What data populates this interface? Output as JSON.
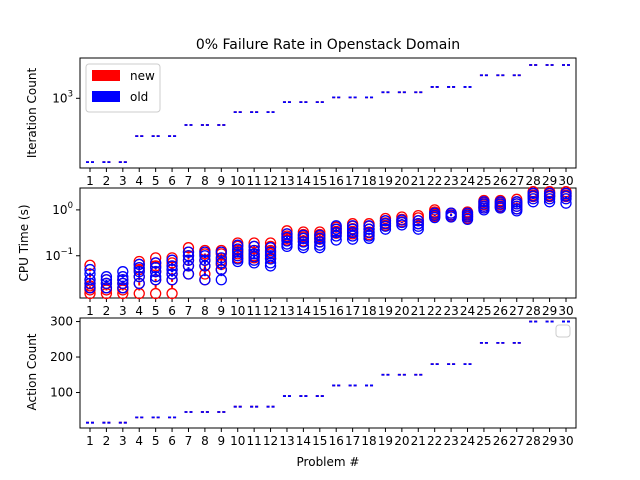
{
  "figure": {
    "title": "0% Failure Rate in Openstack Domain",
    "xlabel": "Problem #"
  },
  "legend": {
    "entries": [
      {
        "label": "new",
        "color": "#ff0000"
      },
      {
        "label": "old",
        "color": "#0000ff"
      }
    ],
    "placement_top": "upper-left",
    "placement_bottom": "upper-right (empty)"
  },
  "chart_data": [
    {
      "type": "box",
      "title": "0% Failure Rate in Openstack Domain",
      "ylabel": "Iteration Count",
      "yscale": "log",
      "ylim": [
        220,
        2400
      ],
      "yticks": [
        {
          "value": 1000,
          "label": "10^3"
        }
      ],
      "categories": [
        "1",
        "2",
        "3",
        "4",
        "5",
        "6",
        "7",
        "8",
        "9",
        "10",
        "11",
        "12",
        "13",
        "14",
        "15",
        "16",
        "17",
        "18",
        "19",
        "20",
        "21",
        "22",
        "23",
        "24",
        "25",
        "26",
        "27",
        "28",
        "29",
        "30"
      ],
      "series": [
        {
          "name": "new",
          "color": "#ff0000",
          "values": [
            250,
            250,
            250,
            440,
            440,
            440,
            560,
            560,
            560,
            740,
            740,
            740,
            920,
            920,
            920,
            1020,
            1020,
            1020,
            1140,
            1140,
            1140,
            1280,
            1280,
            1280,
            1650,
            1650,
            1650,
            2060,
            2060,
            2060
          ]
        },
        {
          "name": "old",
          "color": "#0000ff",
          "values": [
            250,
            250,
            250,
            440,
            440,
            440,
            560,
            560,
            560,
            740,
            740,
            740,
            920,
            920,
            920,
            1020,
            1020,
            1020,
            1140,
            1140,
            1140,
            1280,
            1280,
            1280,
            1650,
            1650,
            1650,
            2060,
            2060,
            2060
          ]
        }
      ]
    },
    {
      "type": "box",
      "ylabel": "CPU Time (s)",
      "yscale": "log",
      "ylim": [
        0.012,
        3.0
      ],
      "yticks": [
        {
          "value": 0.1,
          "label": "10^-1"
        },
        {
          "value": 1,
          "label": "10^0"
        }
      ],
      "categories": [
        "1",
        "2",
        "3",
        "4",
        "5",
        "6",
        "7",
        "8",
        "9",
        "10",
        "11",
        "12",
        "13",
        "14",
        "15",
        "16",
        "17",
        "18",
        "19",
        "20",
        "21",
        "22",
        "23",
        "24",
        "25",
        "26",
        "27",
        "28",
        "29",
        "30"
      ],
      "series": [
        {
          "name": "new",
          "color": "#ff0000",
          "values": [
            [
              0.062,
              0.03,
              0.025,
              0.022,
              0.02,
              0.018,
              0.015
            ],
            [
              0.03,
              0.025,
              0.02,
              0.018,
              0.015
            ],
            [
              0.03,
              0.025,
              0.02,
              0.018,
              0.015
            ],
            [
              0.075,
              0.065,
              0.05,
              0.035,
              0.025,
              0.015
            ],
            [
              0.09,
              0.07,
              0.06,
              0.045,
              0.03,
              0.015
            ],
            [
              0.09,
              0.07,
              0.05,
              0.04,
              0.03,
              0.015
            ],
            [
              0.15,
              0.12,
              0.1,
              0.08,
              0.06,
              0.04
            ],
            [
              0.13,
              0.11,
              0.08,
              0.06,
              0.04,
              0.03
            ],
            [
              0.13,
              0.11,
              0.08,
              0.065,
              0.05
            ],
            [
              0.19,
              0.16,
              0.13,
              0.11,
              0.09
            ],
            [
              0.19,
              0.16,
              0.13,
              0.11,
              0.1,
              0.09
            ],
            [
              0.19,
              0.16,
              0.13,
              0.11,
              0.09
            ],
            [
              0.35,
              0.3,
              0.27,
              0.24,
              0.22
            ],
            [
              0.33,
              0.29,
              0.26,
              0.24,
              0.21
            ],
            [
              0.33,
              0.29,
              0.26,
              0.23,
              0.2
            ],
            [
              0.42,
              0.38,
              0.34,
              0.31
            ],
            [
              0.5,
              0.44,
              0.39,
              0.34,
              0.3
            ],
            [
              0.5,
              0.44,
              0.38,
              0.33,
              0.29
            ],
            [
              0.65,
              0.58,
              0.52,
              0.46
            ],
            [
              0.7,
              0.62,
              0.55
            ],
            [
              0.75,
              0.67,
              0.58,
              0.5
            ],
            [
              1.0,
              0.9,
              0.8,
              0.72
            ],
            [
              0.85,
              0.78,
              0.72
            ],
            [
              0.9,
              0.8,
              0.72,
              0.65
            ],
            [
              1.6,
              1.45,
              1.3,
              1.2,
              1.1
            ],
            [
              1.6,
              1.45,
              1.3,
              1.2,
              1.15
            ],
            [
              1.7,
              1.5,
              1.35,
              1.2,
              1.05
            ],
            [
              2.5,
              2.3,
              2.1,
              1.95
            ],
            [
              2.5,
              2.3,
              2.1,
              1.95
            ],
            [
              2.5,
              2.3,
              2.1,
              1.95
            ]
          ]
        },
        {
          "name": "old",
          "color": "#0000ff",
          "values": [
            [
              0.05,
              0.04,
              0.03,
              0.025,
              0.02
            ],
            [
              0.035,
              0.03,
              0.025,
              0.02
            ],
            [
              0.045,
              0.035,
              0.03,
              0.025,
              0.02
            ],
            [
              0.065,
              0.055,
              0.045,
              0.035,
              0.025
            ],
            [
              0.07,
              0.055,
              0.045,
              0.035,
              0.03
            ],
            [
              0.08,
              0.06,
              0.05,
              0.04,
              0.03
            ],
            [
              0.12,
              0.1,
              0.08,
              0.06,
              0.04
            ],
            [
              0.12,
              0.1,
              0.08,
              0.06,
              0.03
            ],
            [
              0.12,
              0.09,
              0.07,
              0.05,
              0.03
            ],
            [
              0.17,
              0.14,
              0.12,
              0.1,
              0.085,
              0.075
            ],
            [
              0.16,
              0.13,
              0.11,
              0.095,
              0.08,
              0.07
            ],
            [
              0.15,
              0.12,
              0.1,
              0.085,
              0.07,
              0.06
            ],
            [
              0.3,
              0.25,
              0.21,
              0.18,
              0.16
            ],
            [
              0.28,
              0.24,
              0.2,
              0.17,
              0.15
            ],
            [
              0.28,
              0.24,
              0.2,
              0.17,
              0.15
            ],
            [
              0.45,
              0.38,
              0.32,
              0.27,
              0.22
            ],
            [
              0.45,
              0.38,
              0.32,
              0.27,
              0.23
            ],
            [
              0.45,
              0.38,
              0.32,
              0.27,
              0.24
            ],
            [
              0.58,
              0.5,
              0.44,
              0.38
            ],
            [
              0.6,
              0.53,
              0.47
            ],
            [
              0.58,
              0.5,
              0.44,
              0.38
            ],
            [
              0.85,
              0.76,
              0.68
            ],
            [
              0.85,
              0.77,
              0.7
            ],
            [
              0.85,
              0.77,
              0.7,
              0.62
            ],
            [
              1.5,
              1.35,
              1.2,
              1.1,
              1.0
            ],
            [
              1.5,
              1.35,
              1.2,
              1.1
            ],
            [
              1.5,
              1.35,
              1.2,
              1.05,
              0.95
            ],
            [
              2.3,
              2.0,
              1.75,
              1.5
            ],
            [
              2.3,
              2.0,
              1.75,
              1.5
            ],
            [
              2.3,
              2.0,
              1.75,
              1.4
            ]
          ]
        }
      ]
    },
    {
      "type": "box",
      "ylabel": "Action Count",
      "yscale": "linear",
      "ylim": [
        0,
        310
      ],
      "yticks": [
        {
          "value": 100,
          "label": "100"
        },
        {
          "value": 200,
          "label": "200"
        },
        {
          "value": 300,
          "label": "300"
        }
      ],
      "categories": [
        "1",
        "2",
        "3",
        "4",
        "5",
        "6",
        "7",
        "8",
        "9",
        "10",
        "11",
        "12",
        "13",
        "14",
        "15",
        "16",
        "17",
        "18",
        "19",
        "20",
        "21",
        "22",
        "23",
        "24",
        "25",
        "26",
        "27",
        "28",
        "29",
        "30"
      ],
      "series": [
        {
          "name": "new",
          "color": "#ff0000",
          "values": [
            15,
            15,
            15,
            30,
            30,
            30,
            45,
            45,
            45,
            60,
            60,
            60,
            90,
            90,
            90,
            120,
            120,
            120,
            150,
            150,
            150,
            180,
            180,
            180,
            240,
            240,
            240,
            300,
            300,
            300
          ]
        },
        {
          "name": "old",
          "color": "#0000ff",
          "values": [
            15,
            15,
            15,
            30,
            30,
            30,
            45,
            45,
            45,
            60,
            60,
            60,
            90,
            90,
            90,
            120,
            120,
            120,
            150,
            150,
            150,
            180,
            180,
            180,
            240,
            240,
            240,
            300,
            300,
            300
          ]
        }
      ]
    }
  ]
}
